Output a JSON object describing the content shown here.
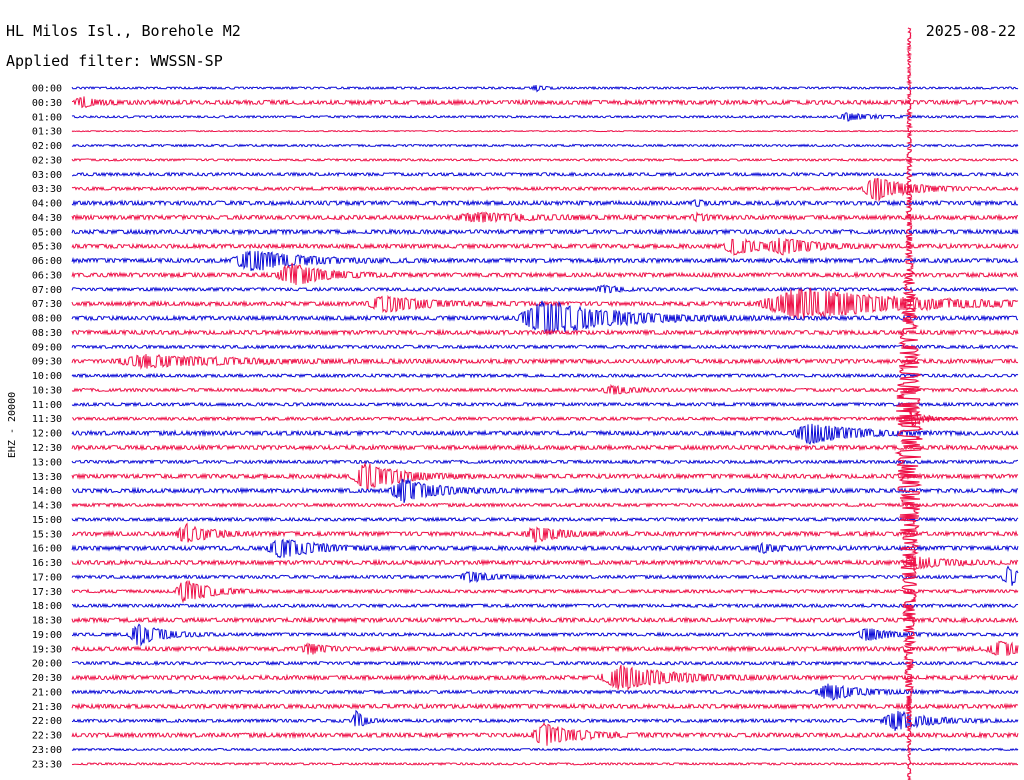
{
  "header": {
    "station": "HL Milos Isl., Borehole M2",
    "filter": "Applied filter: WWSSN-SP",
    "date": "2025-08-22"
  },
  "channel_label": "EHZ - 20000",
  "colors": {
    "blue": "#0b0bd6",
    "red": "#ee1148"
  },
  "chart_data": {
    "type": "line",
    "title": "",
    "ylabel": "EHZ - 20000",
    "row_labels": [
      "00:00",
      "00:30",
      "01:00",
      "01:30",
      "02:00",
      "02:30",
      "03:00",
      "03:30",
      "04:00",
      "04:30",
      "05:00",
      "05:30",
      "06:00",
      "06:30",
      "07:00",
      "07:30",
      "08:00",
      "08:30",
      "09:00",
      "09:30",
      "10:00",
      "10:30",
      "11:00",
      "11:30",
      "12:00",
      "12:30",
      "13:00",
      "13:30",
      "14:00",
      "14:30",
      "15:00",
      "15:30",
      "16:00",
      "16:30",
      "17:00",
      "17:30",
      "18:00",
      "18:30",
      "19:00",
      "19:30",
      "20:00",
      "20:30",
      "21:00",
      "21:30",
      "22:00",
      "22:30",
      "23:00",
      "23:30"
    ],
    "row_colors": [
      "blue",
      "red"
    ],
    "noise_level": [
      1,
      2,
      1,
      0.5,
      1,
      1,
      1.5,
      1.5,
      2,
      2,
      2,
      2,
      2,
      2,
      1.5,
      2,
      2,
      2,
      1.5,
      2,
      1.5,
      1.5,
      1.5,
      1.5,
      2,
      2,
      1.5,
      2,
      2,
      1.5,
      1.5,
      2,
      2,
      2,
      1.5,
      1.5,
      1.5,
      2,
      1.5,
      2,
      1.5,
      2,
      1.5,
      2,
      1.5,
      2,
      1,
      1
    ],
    "events": [
      {
        "row": 0,
        "t": 0.49,
        "amp": 3,
        "dur": 0.01
      },
      {
        "row": 1,
        "t": 0.01,
        "amp": 5,
        "dur": 0.02
      },
      {
        "row": 2,
        "t": 0.82,
        "amp": 4,
        "dur": 0.03
      },
      {
        "row": 7,
        "t": 0.85,
        "amp": 12,
        "dur": 0.04
      },
      {
        "row": 8,
        "t": 0.66,
        "amp": 3,
        "dur": 0.01
      },
      {
        "row": 9,
        "t": 0.43,
        "amp": 4,
        "dur": 0.07
      },
      {
        "row": 9,
        "t": 0.66,
        "amp": 3,
        "dur": 0.02
      },
      {
        "row": 11,
        "t": 0.7,
        "amp": 9,
        "dur": 0.03
      },
      {
        "row": 11,
        "t": 0.75,
        "amp": 7,
        "dur": 0.04
      },
      {
        "row": 12,
        "t": 0.19,
        "amp": 10,
        "dur": 0.06
      },
      {
        "row": 13,
        "t": 0.23,
        "amp": 12,
        "dur": 0.04
      },
      {
        "row": 14,
        "t": 0.56,
        "amp": 4,
        "dur": 0.02
      },
      {
        "row": 15,
        "t": 0.33,
        "amp": 8,
        "dur": 0.05
      },
      {
        "row": 15,
        "t": 0.77,
        "amp": 16,
        "dur": 0.12
      },
      {
        "row": 16,
        "t": 0.5,
        "amp": 18,
        "dur": 0.08
      },
      {
        "row": 19,
        "t": 0.08,
        "amp": 6,
        "dur": 0.1
      },
      {
        "row": 21,
        "t": 0.57,
        "amp": 4,
        "dur": 0.03
      },
      {
        "row": 24,
        "t": 0.78,
        "amp": 10,
        "dur": 0.05
      },
      {
        "row": 27,
        "t": 0.31,
        "amp": 14,
        "dur": 0.04
      },
      {
        "row": 28,
        "t": 0.35,
        "amp": 12,
        "dur": 0.04
      },
      {
        "row": 31,
        "t": 0.12,
        "amp": 9,
        "dur": 0.03
      },
      {
        "row": 31,
        "t": 0.49,
        "amp": 8,
        "dur": 0.03
      },
      {
        "row": 32,
        "t": 0.22,
        "amp": 10,
        "dur": 0.04
      },
      {
        "row": 32,
        "t": 0.73,
        "amp": 4,
        "dur": 0.02
      },
      {
        "row": 33,
        "t": 0.89,
        "amp": 6,
        "dur": 0.04
      },
      {
        "row": 34,
        "t": 0.42,
        "amp": 5,
        "dur": 0.03
      },
      {
        "row": 34,
        "t": 0.99,
        "amp": 10,
        "dur": 0.02
      },
      {
        "row": 35,
        "t": 0.12,
        "amp": 12,
        "dur": 0.03
      },
      {
        "row": 38,
        "t": 0.07,
        "amp": 11,
        "dur": 0.03
      },
      {
        "row": 38,
        "t": 0.84,
        "amp": 6,
        "dur": 0.03
      },
      {
        "row": 39,
        "t": 0.25,
        "amp": 5,
        "dur": 0.02
      },
      {
        "row": 39,
        "t": 0.98,
        "amp": 7,
        "dur": 0.04
      },
      {
        "row": 41,
        "t": 0.58,
        "amp": 12,
        "dur": 0.06
      },
      {
        "row": 42,
        "t": 0.8,
        "amp": 8,
        "dur": 0.04
      },
      {
        "row": 44,
        "t": 0.3,
        "amp": 10,
        "dur": 0.01
      },
      {
        "row": 44,
        "t": 0.87,
        "amp": 10,
        "dur": 0.04
      },
      {
        "row": 45,
        "t": 0.5,
        "amp": 11,
        "dur": 0.04
      }
    ],
    "main_quake": {
      "start_row": 0,
      "t": 0.885,
      "peak_row": 23,
      "end_row": 47
    }
  }
}
